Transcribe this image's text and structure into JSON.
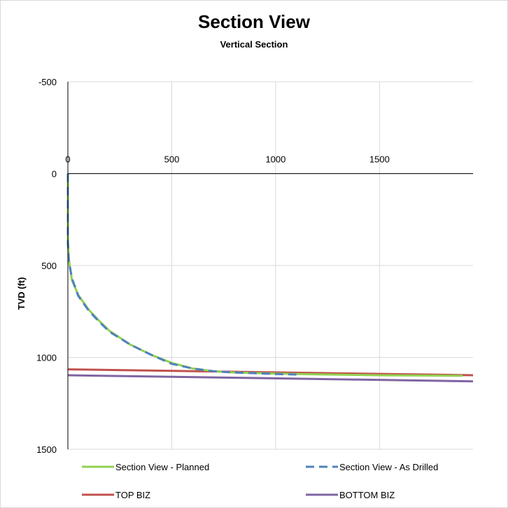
{
  "chart_data": {
    "type": "line",
    "title": "Section View",
    "subtitle": "Vertical Section",
    "xlabel": "",
    "ylabel": "TVD (ft)",
    "xlim": [
      0,
      1950
    ],
    "ylim": [
      -500,
      1500
    ],
    "y_reversed": true,
    "x_ticks": [
      0,
      500,
      1000,
      1500
    ],
    "x_tick_labels": [
      "0",
      "500",
      "1000",
      "1500"
    ],
    "y_ticks": [
      -500,
      0,
      500,
      1000,
      1500
    ],
    "y_tick_labels": [
      "-500",
      "0",
      "500",
      "1000",
      "1500"
    ],
    "grid": true,
    "legend_position": "bottom",
    "series": [
      {
        "name": "Section View - Planned",
        "color": "#92d050",
        "dash": "solid",
        "x": [
          0,
          0,
          5,
          20,
          50,
          100,
          150,
          200,
          300,
          400,
          500,
          600,
          700,
          800,
          1000,
          1200,
          1500,
          1900
        ],
        "y": [
          0,
          350,
          470,
          580,
          660,
          740,
          800,
          855,
          930,
          985,
          1030,
          1060,
          1075,
          1082,
          1088,
          1092,
          1097,
          1100
        ]
      },
      {
        "name": "Section View - As Drilled",
        "color": "#4f81bd",
        "dash": "dashed",
        "x": [
          0,
          0,
          5,
          20,
          50,
          100,
          150,
          200,
          300,
          400,
          500,
          600,
          700,
          800,
          900,
          1000,
          1100
        ],
        "y": [
          0,
          380,
          480,
          570,
          665,
          745,
          805,
          860,
          930,
          985,
          1035,
          1060,
          1075,
          1082,
          1086,
          1090,
          1093
        ]
      },
      {
        "name": "TOP BIZ",
        "color": "#c0504d",
        "dash": "solid",
        "x": [
          0,
          1950
        ],
        "y": [
          1065,
          1097
        ]
      },
      {
        "name": "BOTTOM BIZ",
        "color": "#8064a2",
        "dash": "solid",
        "x": [
          0,
          1950
        ],
        "y": [
          1097,
          1130
        ]
      }
    ]
  }
}
